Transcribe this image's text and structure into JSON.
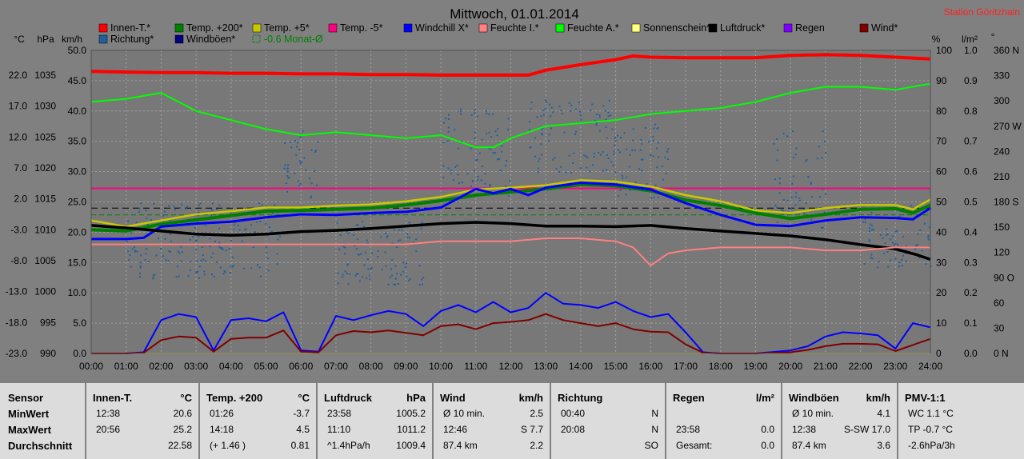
{
  "title": "Mittwoch, 01.01.2014",
  "station": "Station Göritzhain",
  "axis_units": {
    "celsius": "°C",
    "hpa": "hPa",
    "kmh": "km/h",
    "percent": "%",
    "rain": "l/m²",
    "degree": "°"
  },
  "legend": [
    {
      "label": "Innen-T.*",
      "color": "#ff0000"
    },
    {
      "label": "Temp. +200*",
      "color": "#008000"
    },
    {
      "label": "Temp. +5*",
      "color": "#c8c800"
    },
    {
      "label": "Temp. -5*",
      "color": "#ff0080"
    },
    {
      "label": "Windchill X*",
      "color": "#0000ff"
    },
    {
      "label": "Feuchte I.*",
      "color": "#ff8080"
    },
    {
      "label": "Feuchte A.*",
      "color": "#00ff00"
    },
    {
      "label": "Sonnenschein*",
      "color": "#ffff80"
    },
    {
      "label": "Luftdruck*",
      "color": "#000000"
    },
    {
      "label": "Regen",
      "color": "#8000ff"
    },
    {
      "label": "Wind*",
      "color": "#800000"
    },
    {
      "label": "Richtung*",
      "color": "#2060a0"
    },
    {
      "label": "Windböen*",
      "color": "#000080"
    },
    {
      "label": "-0.6 Monat-Ø",
      "color": "#008000",
      "dashed": true
    }
  ],
  "chart_data": {
    "type": "line",
    "title": "Mittwoch, 01.01.2014",
    "x_ticks": [
      "00:00",
      "01:00",
      "02:00",
      "03:00",
      "04:00",
      "05:00",
      "06:00",
      "07:00",
      "08:00",
      "09:00",
      "10:00",
      "11:00",
      "12:00",
      "13:00",
      "14:00",
      "15:00",
      "16:00",
      "17:00",
      "18:00",
      "19:00",
      "20:00",
      "21:00",
      "22:00",
      "23:00",
      "24:00"
    ],
    "x_range": [
      0,
      24
    ],
    "axes": {
      "temp_c": {
        "ticks": [
          "22.0",
          "17.0",
          "12.0",
          "7.0",
          "2.0",
          "-3.0",
          "-8.0",
          "-13.0",
          "-18.0",
          "-23.0"
        ],
        "range": [
          -23,
          26
        ]
      },
      "pressure_hpa": {
        "ticks": [
          "1035",
          "1030",
          "1025",
          "1020",
          "1015",
          "1010",
          "1005",
          "1000",
          "995",
          "990"
        ],
        "range": [
          990,
          1039
        ]
      },
      "wind_kmh": {
        "ticks": [
          "50.0",
          "45.0",
          "40.0",
          "35.0",
          "30.0",
          "25.0",
          "20.0",
          "15.0",
          "10.0",
          "5.0",
          "0.0"
        ],
        "range": [
          0,
          50
        ]
      },
      "humidity_pct": {
        "ticks": [
          "100",
          "90",
          "80",
          "70",
          "60",
          "50",
          "40",
          "30",
          "20",
          "10",
          "0"
        ],
        "range": [
          0,
          100
        ]
      },
      "rain_lm2": {
        "ticks": [
          "1.0",
          "0.9",
          "0.8",
          "0.7",
          "0.6",
          "0.5",
          "0.4",
          "0.3",
          "0.2",
          "0.1",
          "0.0"
        ],
        "range": [
          0,
          1
        ]
      },
      "direction_deg": {
        "ticks": [
          "360 N",
          "330",
          "300",
          "270 W",
          "240",
          "210",
          "180 S",
          "150",
          "120",
          "90 O",
          "60",
          "30",
          "0 N"
        ],
        "range": [
          0,
          360
        ]
      }
    },
    "grid": true,
    "reference_lines": [
      {
        "name": "Temp. -5*",
        "value_c": 3.7
      },
      {
        "name": "Feuchte I. level",
        "value_pct": 36
      }
    ],
    "series": [
      {
        "name": "Innen-T.*",
        "axis": "temp_c",
        "color": "#ff0000",
        "x": [
          0,
          1,
          2,
          3,
          4,
          5,
          6,
          7,
          8,
          9,
          10,
          11,
          12,
          12.5,
          13,
          14,
          15,
          15.5,
          16,
          17,
          18,
          19,
          20,
          21,
          22,
          23,
          24
        ],
        "y": [
          22.6,
          22.5,
          22.4,
          22.4,
          22.3,
          22.3,
          22.2,
          22.2,
          22.1,
          22.1,
          22.0,
          22.0,
          22.0,
          22.0,
          22.8,
          23.7,
          24.5,
          25.1,
          24.9,
          24.8,
          24.8,
          24.8,
          25.2,
          25.3,
          25.2,
          24.9,
          24.6
        ]
      },
      {
        "name": "Feuchte A.*",
        "axis": "humidity_pct",
        "color": "#00ff00",
        "x": [
          0,
          1,
          2,
          3,
          4,
          5,
          6,
          7,
          8,
          9,
          10,
          10.5,
          11,
          11.5,
          12,
          13,
          14,
          15,
          16,
          17,
          18,
          19,
          20,
          21,
          22,
          23,
          24
        ],
        "y": [
          83,
          84,
          86,
          80,
          77,
          74,
          72,
          73,
          72,
          71,
          72,
          70,
          68,
          68,
          71,
          75,
          76,
          77,
          79,
          80,
          81,
          83,
          86,
          88,
          88,
          87,
          89
        ]
      },
      {
        "name": "Temp. +5*",
        "axis": "temp_c",
        "color": "#c8c800",
        "x": [
          0,
          1,
          2,
          3,
          4,
          5,
          6,
          7,
          8,
          9,
          10,
          11,
          12,
          13,
          14,
          15,
          16,
          17,
          18,
          19,
          20,
          21,
          22,
          23,
          23.5,
          24
        ],
        "y": [
          -1.5,
          -2.5,
          -1.5,
          -0.5,
          0.0,
          0.6,
          0.6,
          0.9,
          1.1,
          1.6,
          2.3,
          3.5,
          3.8,
          4.2,
          5.0,
          4.8,
          4.0,
          2.6,
          1.6,
          0.1,
          -0.3,
          0.5,
          1.0,
          1.0,
          0.3,
          1.9
        ]
      },
      {
        "name": "Temp. +200*",
        "axis": "temp_c",
        "color": "#008000",
        "x": [
          0,
          1,
          2,
          3,
          4,
          5,
          6,
          7,
          8,
          9,
          10,
          11,
          12,
          13,
          14,
          15,
          16,
          17,
          18,
          19,
          20,
          21,
          22,
          23,
          23.5,
          24
        ],
        "y": [
          -3.0,
          -3.2,
          -2.1,
          -1.4,
          -0.7,
          0.0,
          0.1,
          0.3,
          0.5,
          1.0,
          1.7,
          2.6,
          3.1,
          3.6,
          4.3,
          4.1,
          3.3,
          1.8,
          0.9,
          -0.3,
          -1.2,
          -0.5,
          0.3,
          0.4,
          -0.3,
          1.0
        ]
      },
      {
        "name": "Windchill X*",
        "axis": "temp_c",
        "color": "#0000ff",
        "x": [
          0,
          1,
          1.5,
          2,
          3,
          4,
          5,
          6,
          7,
          8,
          9,
          10,
          11,
          11.5,
          12,
          12.5,
          13,
          14,
          15,
          16,
          17,
          18,
          19,
          20,
          21,
          22,
          23,
          23.5,
          24
        ],
        "y": [
          -4.5,
          -4.5,
          -4.3,
          -2.5,
          -2.0,
          -1.7,
          -1.0,
          -0.5,
          -0.6,
          -0.3,
          -0.1,
          0.6,
          3.6,
          2.9,
          3.6,
          2.6,
          3.8,
          4.6,
          4.3,
          3.5,
          1.3,
          -0.6,
          -2.2,
          -2.4,
          -1.5,
          -1.0,
          -1.1,
          -1.3,
          0.5
        ]
      },
      {
        "name": "Luftdruck*",
        "axis": "pressure_hpa",
        "color": "#000000",
        "x": [
          0,
          1,
          2,
          3,
          4,
          5,
          6,
          7,
          8,
          9,
          10,
          11,
          12,
          13,
          14,
          15,
          16,
          17,
          18,
          19,
          20,
          21,
          22,
          23,
          23.58,
          24
        ],
        "y": [
          1010.7,
          1010.3,
          1009.8,
          1009.3,
          1009.1,
          1009.3,
          1009.7,
          1009.9,
          1010.2,
          1010.6,
          1011.0,
          1011.2,
          1011.0,
          1010.6,
          1010.6,
          1010.5,
          1010.7,
          1010.2,
          1009.8,
          1009.4,
          1009.0,
          1008.4,
          1007.6,
          1006.9,
          1006.0,
          1005.2
        ]
      },
      {
        "name": "Feuchte I.*",
        "axis": "humidity_pct",
        "color": "#ff8080",
        "x": [
          0,
          1,
          2,
          3,
          4,
          5,
          6,
          7,
          8,
          9,
          10,
          11,
          12,
          13,
          14,
          15,
          15.5,
          16,
          16.5,
          17,
          18,
          19,
          20,
          21,
          22,
          23,
          24
        ],
        "y": [
          36,
          36,
          36,
          36,
          36,
          36,
          36,
          36,
          36,
          36,
          37,
          37,
          37,
          38,
          38,
          37,
          35,
          29,
          33,
          34,
          35,
          35,
          35,
          34,
          34,
          35,
          35
        ]
      },
      {
        "name": "Windböen*",
        "axis": "wind_kmh",
        "color": "#0000ff",
        "x": [
          0,
          1,
          1.5,
          2,
          2.5,
          3,
          3.5,
          4,
          4.5,
          5,
          5.5,
          6,
          6.5,
          7,
          7.5,
          8,
          8.5,
          9,
          9.5,
          10,
          10.5,
          11,
          11.5,
          12,
          12.5,
          13,
          13.5,
          14,
          14.5,
          15,
          15.5,
          16,
          16.5,
          17,
          17.5,
          18,
          19,
          20,
          20.5,
          21,
          21.5,
          22,
          22.5,
          23,
          23.5,
          24
        ],
        "y": [
          0,
          0,
          0.2,
          5.5,
          6.5,
          6.0,
          0.5,
          5.5,
          5.8,
          5.3,
          6.8,
          0.5,
          0.3,
          6.2,
          5.5,
          6.3,
          7.0,
          6.5,
          4.5,
          7.0,
          8.0,
          6.8,
          8.5,
          6.8,
          7.5,
          10.0,
          8.2,
          8.0,
          7.5,
          8.5,
          7.0,
          6.0,
          6.5,
          3.5,
          0.2,
          0,
          0,
          0.5,
          1.2,
          2.8,
          3.5,
          3.3,
          3.0,
          0.8,
          5.0,
          4.3
        ]
      },
      {
        "name": "Wind*",
        "axis": "wind_kmh",
        "color": "#800000",
        "x": [
          0,
          1,
          1.5,
          2,
          2.5,
          3,
          3.5,
          4,
          4.5,
          5,
          5.5,
          6,
          6.5,
          7,
          7.5,
          8,
          8.5,
          9,
          9.5,
          10,
          10.5,
          11,
          11.5,
          12,
          12.5,
          13,
          13.5,
          14,
          14.5,
          15,
          15.5,
          16,
          16.5,
          17,
          17.5,
          18,
          19,
          20,
          20.5,
          21,
          21.5,
          22,
          22.5,
          23,
          23.5,
          24
        ],
        "y": [
          0,
          0,
          0.1,
          2.2,
          2.8,
          2.6,
          0.3,
          2.4,
          2.6,
          2.6,
          3.8,
          0.3,
          0.2,
          3.0,
          3.7,
          3.5,
          3.8,
          3.4,
          3.0,
          4.5,
          4.8,
          4.0,
          5.0,
          5.2,
          5.5,
          6.5,
          5.5,
          5.0,
          4.5,
          5.0,
          4.0,
          3.6,
          3.5,
          1.5,
          0.1,
          0,
          0,
          0.2,
          0.6,
          1.2,
          1.6,
          1.6,
          1.5,
          0.4,
          1.4,
          2.4
        ]
      }
    ],
    "direction_scatter_axis": "direction_deg",
    "stats": {
      "row_labels": [
        "Sensor",
        "MinWert",
        "MaxWert",
        "Durchschnitt"
      ],
      "columns": [
        {
          "header": "Innen-T.",
          "unit": "°C",
          "rows": [
            [
              "12:38",
              "20.6"
            ],
            [
              "20:56",
              "25.2"
            ],
            [
              "",
              "22.58"
            ]
          ]
        },
        {
          "header": "Temp. +200",
          "unit": "°C",
          "rows": [
            [
              "01:26",
              "-3.7"
            ],
            [
              "14:18",
              "4.5"
            ],
            [
              "(+ 1.46 )",
              "0.81"
            ]
          ]
        },
        {
          "header": "Luftdruck",
          "unit": "hPa",
          "rows": [
            [
              "23:58",
              "1005.2"
            ],
            [
              "11:10",
              "1011.2"
            ],
            [
              "^1.4hPa/h",
              "1009.4"
            ]
          ]
        },
        {
          "header": "Wind",
          "unit": "km/h",
          "rows": [
            [
              "Ø 10 min.",
              "2.5"
            ],
            [
              "12:46",
              "S 7.7"
            ],
            [
              "87.4 km",
              "2.2"
            ]
          ]
        },
        {
          "header": "Richtung",
          "unit": "",
          "rows": [
            [
              "00:40",
              "N"
            ],
            [
              "20:08",
              "N"
            ],
            [
              "",
              "SO"
            ]
          ]
        },
        {
          "header": "Regen",
          "unit": "l/m²",
          "rows": [
            [
              "",
              ""
            ],
            [
              "23:58",
              "0.0"
            ],
            [
              "Gesamt:",
              "0.0"
            ]
          ]
        },
        {
          "header": "Windböen",
          "unit": "km/h",
          "rows": [
            [
              "Ø 10 min.",
              "4.1"
            ],
            [
              "12:38",
              "S-SW 17.0"
            ],
            [
              "87.4 km",
              "3.6"
            ]
          ]
        },
        {
          "header": "PMV-1:1",
          "unit": "",
          "rows": [
            [
              "WC 1.1 °C",
              ""
            ],
            [
              "TP -0.7 °C",
              ""
            ],
            [
              "-2.6hPa/3h",
              ""
            ]
          ]
        }
      ]
    }
  }
}
